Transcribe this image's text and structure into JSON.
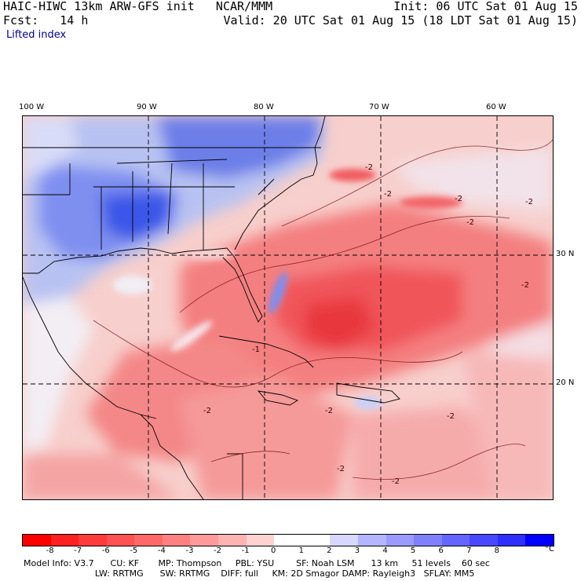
{
  "header": {
    "title": "HAIC-HIWC 13km ARW-GFS init   NCAR/MMM",
    "init": "Init: 06 UTC Sat 01 Aug 15",
    "fcst": "Fcst:   14 h",
    "valid": "Valid: 20 UTC Sat 01 Aug 15 (18 LDT Sat 01 Aug 15)",
    "field": "Lifted index"
  },
  "map": {
    "lon_labels": [
      "100 W",
      "90 W",
      "80 W",
      "70 W",
      "60 W"
    ],
    "lat_labels": [
      "30 N",
      "20 N"
    ],
    "contour_labels": [
      "-2",
      "-2",
      "-2",
      "-2",
      "-2",
      "-2",
      "-1",
      "-2",
      "-2",
      "-2",
      "-2",
      "-2"
    ]
  },
  "colorbar": {
    "labels": [
      "-8",
      "-7",
      "-6",
      "-5",
      "-4",
      "-3",
      "-2",
      "-1",
      "0",
      "1",
      "2",
      "3",
      "4",
      "5",
      "6",
      "7",
      "8"
    ],
    "unit": "°C",
    "colors": [
      "#ff0000",
      "#ff2020",
      "#ff3b3b",
      "#ff5252",
      "#ff6868",
      "#ff8080",
      "#ff9a9a",
      "#ffb4b4",
      "#ffd2d2",
      "#ffffff",
      "#ffffff",
      "#d7d7ff",
      "#b4b4ff",
      "#9a9aff",
      "#8080ff",
      "#6464ff",
      "#4848ff",
      "#2e2eff",
      "#0000ff"
    ]
  },
  "footer": {
    "line1": "Model Info: V3.7      CU: KF       MP: Thompson     PBL: YSU        SF: Noah LSM      13 km     51 levels    60 sec",
    "line2": "                          LW: RRTMG      SW: RRTMG    DIFF: full     KM: 2D Smagor DAMP: Rayleigh3   SFLAY: MM5"
  }
}
